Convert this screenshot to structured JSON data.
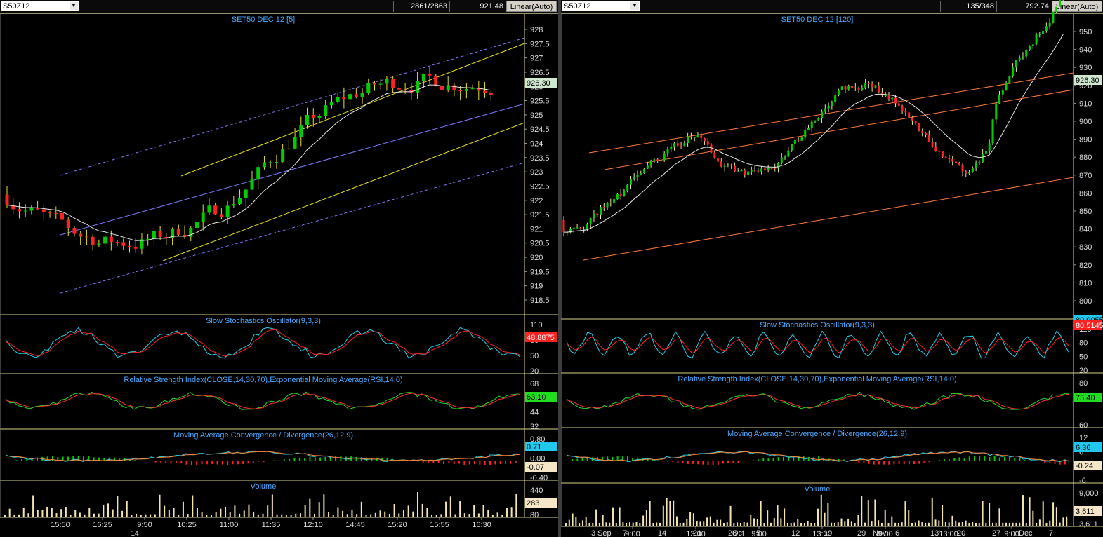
{
  "left": {
    "symbol": "S50Z12",
    "bars": "2861/2863",
    "last": "921.48",
    "scale_mode": "Linear(Auto)",
    "title": "SET50 DEC 12   [5]",
    "price_axis": [
      "928",
      "927.5",
      "927",
      "926.5",
      "926",
      "925.5",
      "925",
      "924.5",
      "924",
      "923.5",
      "923",
      "922.5",
      "922",
      "921.5",
      "921",
      "920.5",
      "920",
      "919.5",
      "919",
      "918.5"
    ],
    "price_tag": "926.30",
    "stoch": {
      "title": "Slow Stochastics Oscillator(9,3,3)",
      "axis": [
        "110",
        "80",
        "50",
        "20"
      ],
      "tag": "48.8875"
    },
    "rsi": {
      "title": "Relative Strength Index(CLOSE,14,30,70),Exponential Moving Average(RSI,14,0)",
      "axis": [
        "68",
        "56",
        "44",
        "32"
      ],
      "tag": "63.10"
    },
    "macd": {
      "title": "Moving Average Convergence / Divergence(26,12,9)",
      "axis": [
        "0.80",
        "0.00",
        "-0.40"
      ],
      "tag1": "0.71",
      "tag2": "-0.07"
    },
    "volume": {
      "title": "Volume",
      "axis": [
        "440",
        "80"
      ],
      "tag": "283"
    },
    "time_axis": [
      "15:50",
      "16:25",
      "9:50",
      "10:25",
      "11:00",
      "11:35",
      "12:10",
      "14:45",
      "15:20",
      "15:55",
      "16:30"
    ],
    "date_marker": "14"
  },
  "right": {
    "symbol": "S50Z12",
    "bars": "135/348",
    "last": "792.74",
    "scale_mode": "Linear(Auto)",
    "title": "SET50 DEC 12   [120]",
    "price_axis": [
      "950",
      "940",
      "930",
      "920",
      "910",
      "900",
      "890",
      "880",
      "870",
      "860",
      "850",
      "840",
      "830",
      "820",
      "810",
      "800"
    ],
    "price_tag": "926.30",
    "stoch": {
      "title": "Slow Stochastics Oscillator(9,3,3)",
      "axis": [
        "110",
        "80",
        "50",
        "20"
      ],
      "tag1": "80.9055",
      "tag2": "80.5145"
    },
    "rsi": {
      "title": "Relative Strength Index(CLOSE,14,30,70),Exponential Moving Average(RSI,14,0)",
      "axis": [
        "80",
        "60"
      ],
      "tag": "75.40"
    },
    "macd": {
      "title": "Moving Average Convergence / Divergence(26,12,9)",
      "axis": [
        "12",
        "6",
        "0",
        "-6"
      ],
      "tag1": "6.36",
      "tag2": "-0.24"
    },
    "volume": {
      "title": "Volume",
      "axis": [
        "9,000",
        "3,611"
      ],
      "tag": "3,611"
    },
    "time_axis": [
      "9:00",
      "13:00",
      "9:00",
      "13:00",
      "9:00",
      "13:00",
      "9:00"
    ],
    "date_axis": [
      "3",
      "Sep",
      "7",
      "14",
      "21",
      "28",
      "Oct",
      "5",
      "12",
      "19",
      "29",
      "Nov",
      "6",
      "13",
      "20",
      "27",
      "Dec",
      "7"
    ]
  },
  "colors": {
    "up": "#00cc00",
    "down": "#ff2222",
    "panel_line": "#d7d28a",
    "title": "#4aa8ff",
    "axis_text": "#dddddd"
  }
}
